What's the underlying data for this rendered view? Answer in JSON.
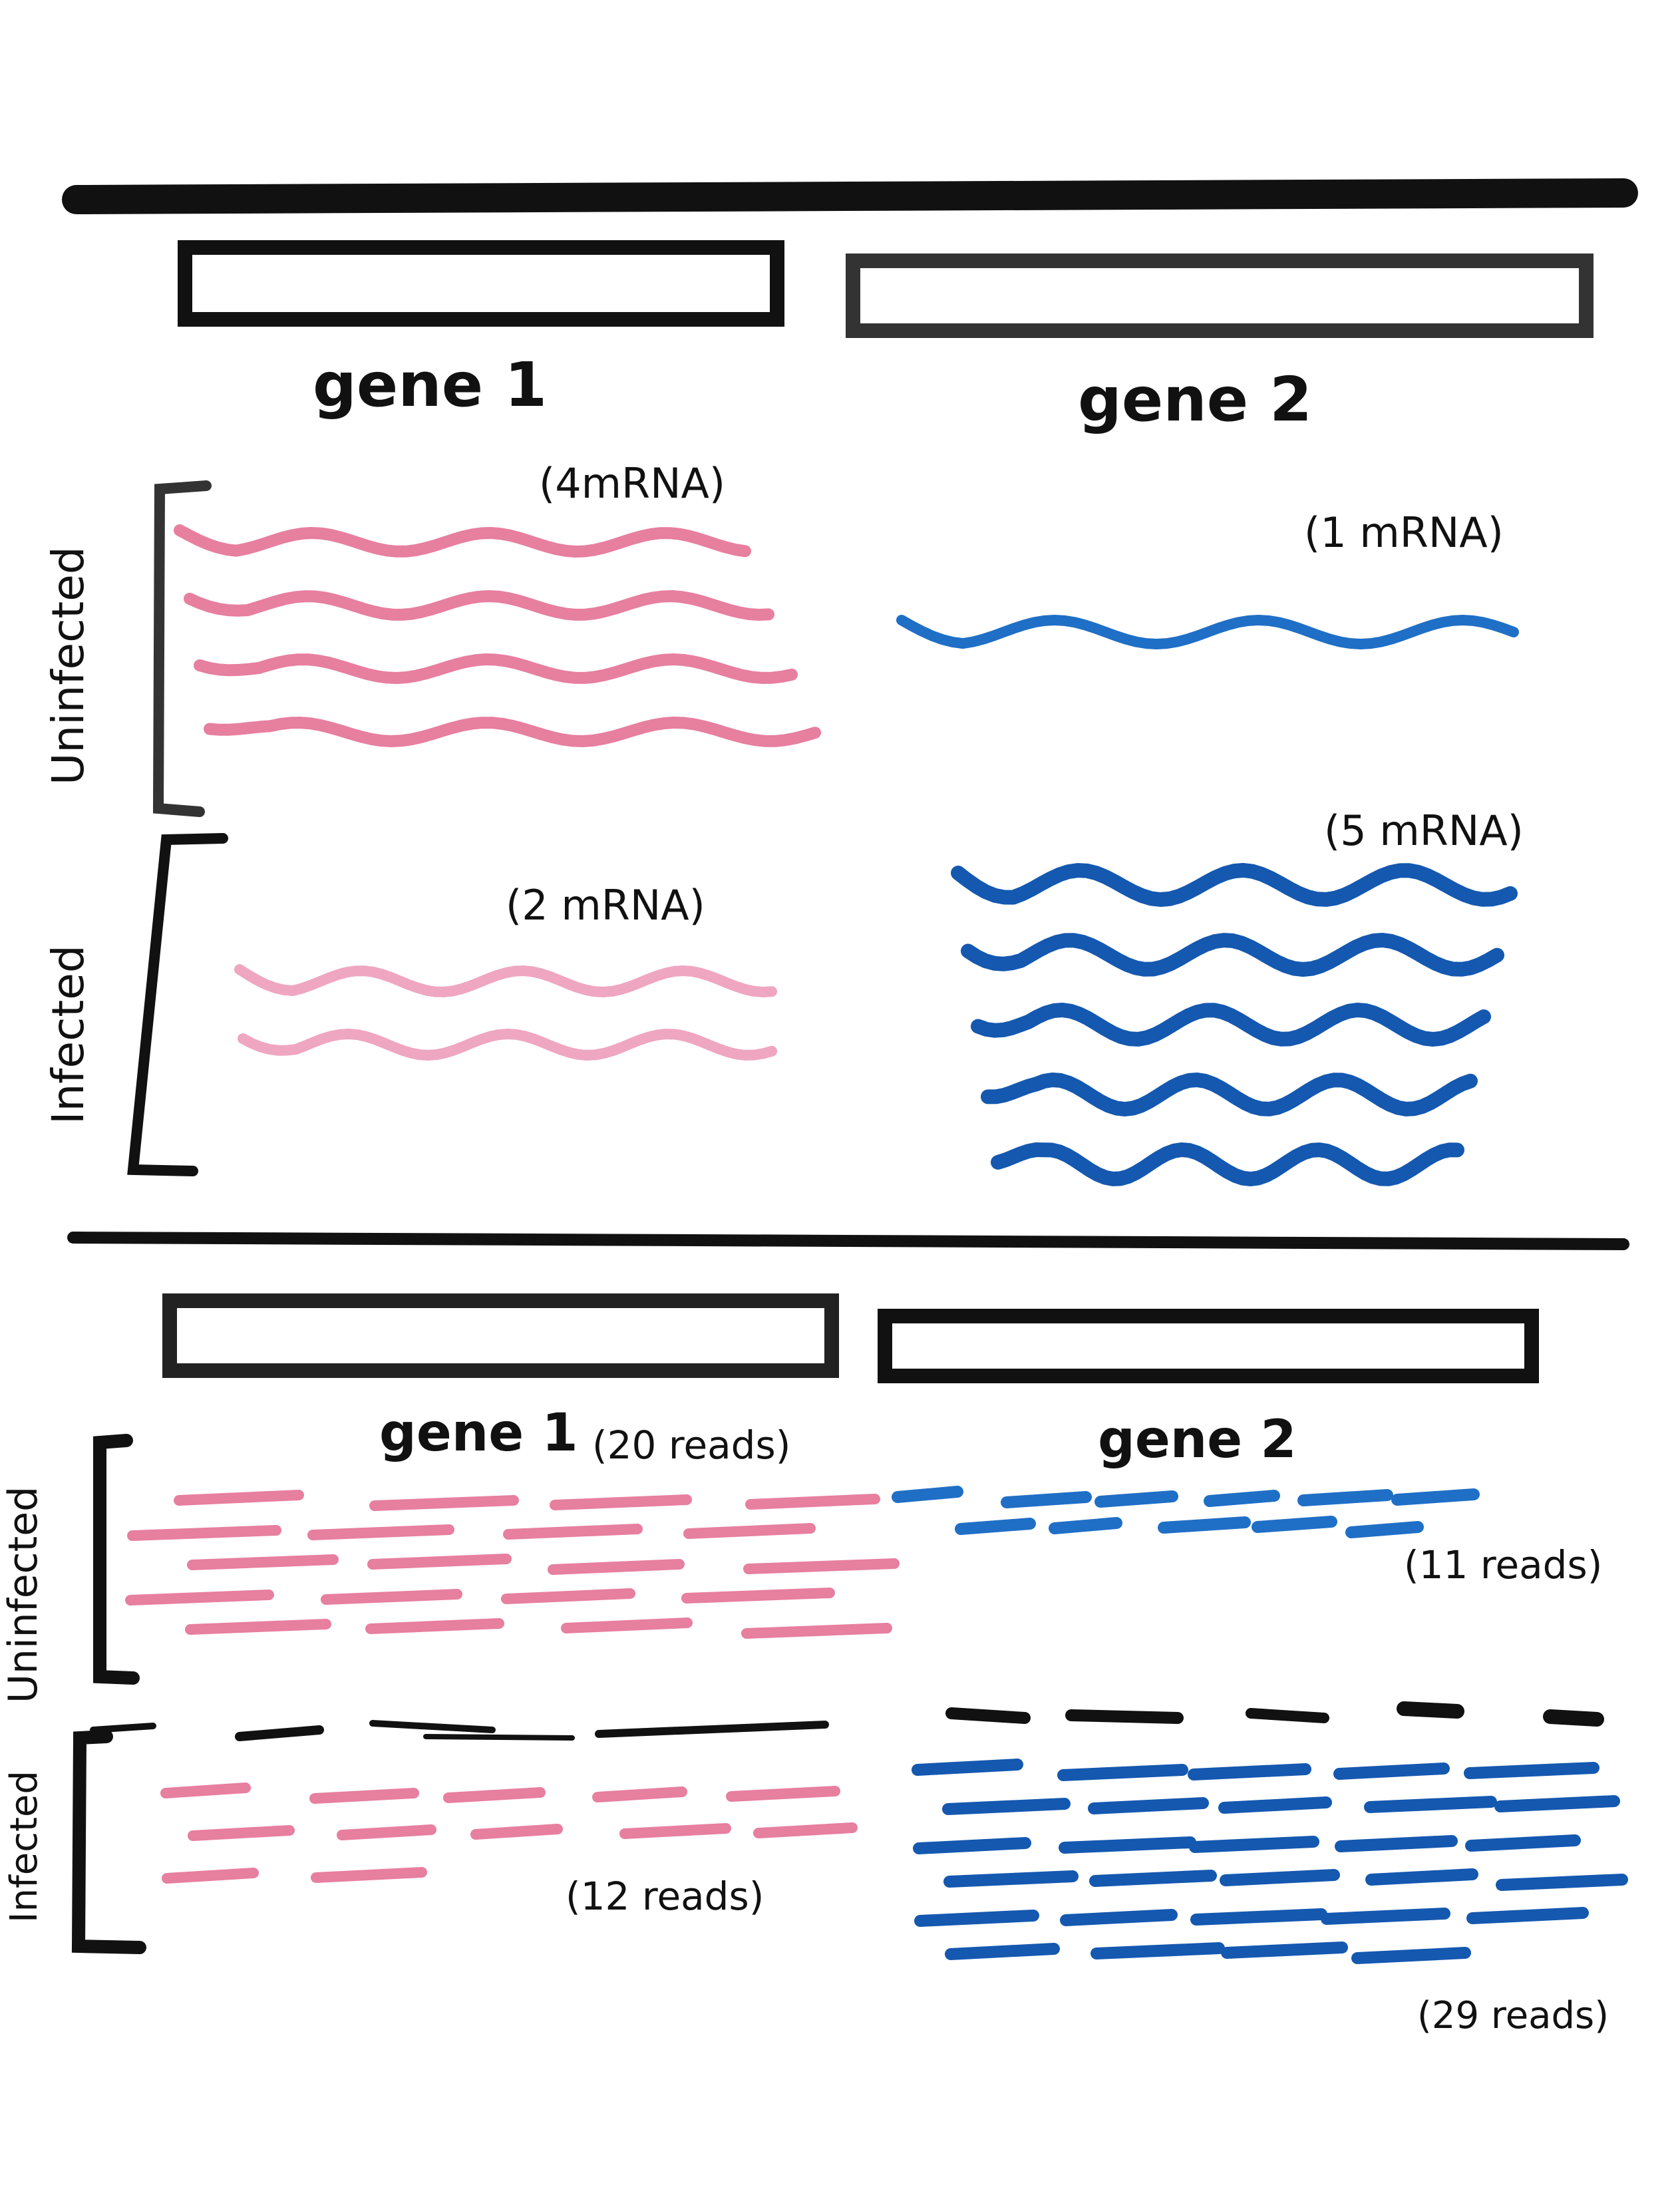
{
  "colors": {
    "ink": "#111111",
    "gene1_uninfected": "#e77f9f",
    "gene1_infected": "#efa6c1",
    "gene2": "#1f6fc6",
    "gene2_dark": "#1458b0"
  },
  "top_panel": {
    "gene_labels": [
      "gene 1",
      "gene 2"
    ],
    "conditions": [
      "Uninfected",
      "Infected"
    ],
    "counts": {
      "gene1_uninfected": "(4mRNA)",
      "gene2_uninfected": "(1 mRNA)",
      "gene1_infected": "(2 mRNA)",
      "gene2_infected": "(5 mRNA)"
    }
  },
  "bottom_panel": {
    "gene_labels": [
      "gene 1",
      "gene 2"
    ],
    "conditions": [
      "Uninfected",
      "Infected"
    ],
    "counts": {
      "gene1_uninfected": "(20 reads)",
      "gene2_uninfected": "(11 reads)",
      "gene1_infected": "(12 reads)",
      "gene2_infected": "(29 reads)"
    }
  },
  "chart_data": {
    "type": "diagram",
    "panels": [
      {
        "unit": "mRNA",
        "values": {
          "gene 1": {
            "Uninfected": 4,
            "Infected": 2
          },
          "gene 2": {
            "Uninfected": 1,
            "Infected": 5
          }
        }
      },
      {
        "unit": "reads",
        "values": {
          "gene 1": {
            "Uninfected": 20,
            "Infected": 12
          },
          "gene 2": {
            "Uninfected": 11,
            "Infected": 29
          }
        }
      }
    ]
  }
}
